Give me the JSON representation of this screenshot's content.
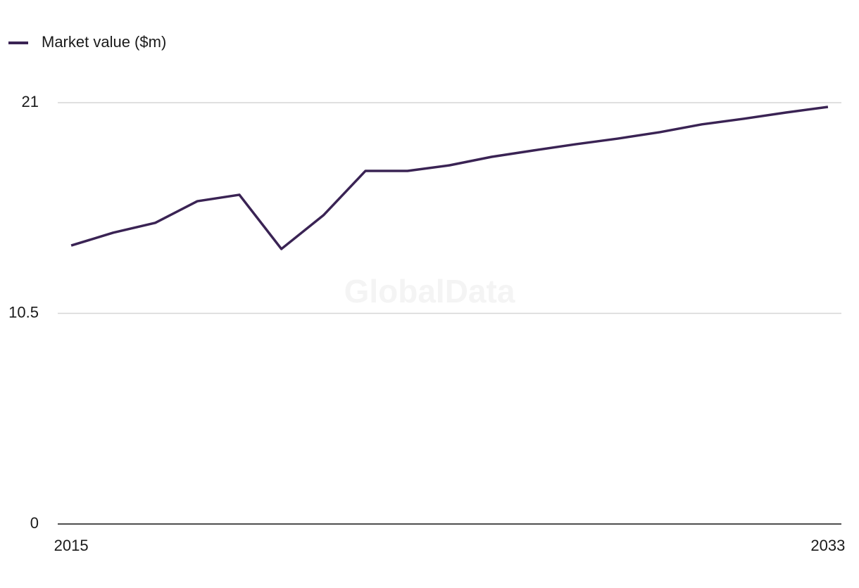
{
  "chart_data": {
    "type": "line",
    "watermark": "GlobalData",
    "x": [
      2015,
      2016,
      2017,
      2018,
      2019,
      2020,
      2021,
      2022,
      2023,
      2024,
      2025,
      2026,
      2027,
      2028,
      2029,
      2030,
      2031,
      2032,
      2033
    ],
    "series": [
      {
        "name": "Market value ($m)",
        "color": "#3a2354",
        "values": [
          13.88,
          14.52,
          15.01,
          16.09,
          16.41,
          13.71,
          15.39,
          17.6,
          17.6,
          17.88,
          18.3,
          18.62,
          18.93,
          19.21,
          19.53,
          19.92,
          20.2,
          20.51,
          20.79
        ]
      }
    ],
    "xlim": [
      2014.68,
      2033.32
    ],
    "xticks": [
      2015,
      2033
    ],
    "ylim": [
      0,
      21
    ],
    "yticks": [
      0,
      10.5,
      21
    ],
    "grid": true,
    "legend": "top-left"
  }
}
